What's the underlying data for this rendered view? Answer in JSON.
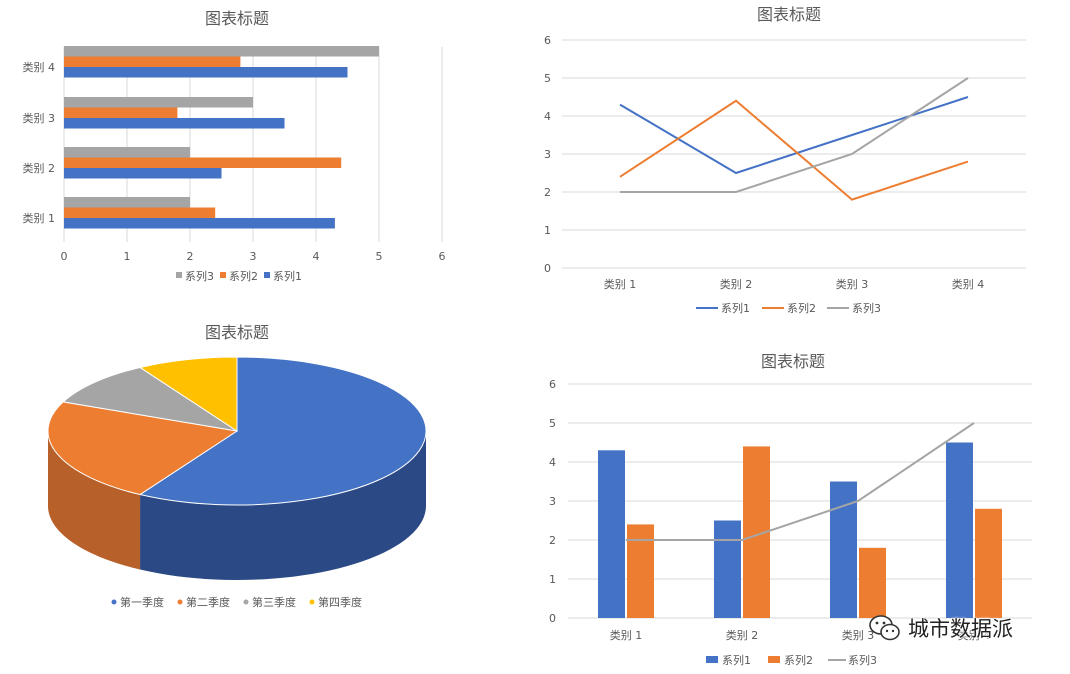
{
  "colors": {
    "series1": "#4472C4",
    "series2": "#ED7D31",
    "series3": "#A5A5A5",
    "series4": "#FFC000",
    "grid": "#D9D9D9",
    "text": "#595959"
  },
  "watermark": {
    "text": "城市数据派",
    "icon": "wechat-icon"
  },
  "chart_data": [
    {
      "type": "bar",
      "orientation": "horizontal",
      "title": "图表标题",
      "categories": [
        "类别 1",
        "类别 2",
        "类别 3",
        "类别 4"
      ],
      "series": [
        {
          "name": "系列1",
          "values": [
            4.3,
            2.5,
            3.5,
            4.5
          ]
        },
        {
          "name": "系列2",
          "values": [
            2.4,
            4.4,
            1.8,
            2.8
          ]
        },
        {
          "name": "系列3",
          "values": [
            2,
            2,
            3,
            5
          ]
        }
      ],
      "xlim": [
        0,
        6
      ],
      "xticks": [
        "0",
        "1",
        "2",
        "3",
        "4",
        "5",
        "6"
      ],
      "grid": true,
      "legend": "bottom",
      "legend_order": [
        "系列3",
        "系列2",
        "系列1"
      ]
    },
    {
      "type": "line",
      "title": "图表标题",
      "categories": [
        "类别 1",
        "类别 2",
        "类别 3",
        "类别 4"
      ],
      "series": [
        {
          "name": "系列1",
          "values": [
            4.3,
            2.5,
            3.5,
            4.5
          ]
        },
        {
          "name": "系列2",
          "values": [
            2.4,
            4.4,
            1.8,
            2.8
          ]
        },
        {
          "name": "系列3",
          "values": [
            2,
            2,
            3,
            5
          ]
        }
      ],
      "ylim": [
        0,
        6
      ],
      "yticks": [
        "0",
        "1",
        "2",
        "3",
        "4",
        "5",
        "6"
      ],
      "grid": true,
      "legend": "bottom"
    },
    {
      "type": "pie",
      "style": "3d",
      "title": "图表标题",
      "labels": [
        "第一季度",
        "第二季度",
        "第三季度",
        "第四季度"
      ],
      "values": [
        8.2,
        3.2,
        1.4,
        1.2
      ],
      "legend": "bottom"
    },
    {
      "type": "bar",
      "combo": "bar+line",
      "title": "图表标题",
      "categories": [
        "类别 1",
        "类别 2",
        "类别 3",
        "类别 4"
      ],
      "series": [
        {
          "name": "系列1",
          "type": "bar",
          "values": [
            4.3,
            2.5,
            3.5,
            4.5
          ]
        },
        {
          "name": "系列2",
          "type": "bar",
          "values": [
            2.4,
            4.4,
            1.8,
            2.8
          ]
        },
        {
          "name": "系列3",
          "type": "line",
          "values": [
            2,
            2,
            3,
            5
          ]
        }
      ],
      "ylim": [
        0,
        6
      ],
      "yticks": [
        "0",
        "1",
        "2",
        "3",
        "4",
        "5",
        "6"
      ],
      "grid": true,
      "legend": "bottom"
    }
  ]
}
